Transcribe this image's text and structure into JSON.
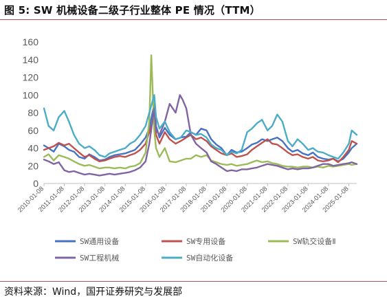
{
  "figure": {
    "title": "图 5:  SW 机械设备二级子行业整体 PE 情况（TTM）",
    "source": "资料来源：Wind，国开证券研究与发展部"
  },
  "colors": {
    "rule": "#c0504d",
    "axis_text": "#595959"
  },
  "chart_data": {
    "type": "line",
    "title": "",
    "xlabel": "",
    "ylabel": "",
    "ylim": [
      0,
      160
    ],
    "yticks": [
      0,
      20,
      40,
      60,
      80,
      100,
      120,
      140,
      160
    ],
    "xlim": [
      "2010-01-08",
      "2025-05-30"
    ],
    "xticks": [
      "2010-01-08",
      "2011-01-08",
      "2012-01-08",
      "2013-01-08",
      "2014-01-08",
      "2015-01-08",
      "2016-01-08",
      "2017-01-08",
      "2018-01-08",
      "2019-01-08",
      "2020-01-08",
      "2021-01-08",
      "2022-01-08",
      "2023-01-08",
      "2024-01-08",
      "2025-01-08"
    ],
    "grid": false,
    "legend_position": "bottom",
    "series": [
      {
        "name": "SW通用设备",
        "color": "#4472c4",
        "x": [
          "2010-01-08",
          "2010-04-01",
          "2010-07-01",
          "2010-10-01",
          "2011-01-08",
          "2011-04-01",
          "2011-07-01",
          "2011-10-01",
          "2012-01-08",
          "2012-04-01",
          "2012-07-01",
          "2012-10-01",
          "2013-01-08",
          "2013-04-01",
          "2013-07-01",
          "2013-10-01",
          "2014-01-08",
          "2014-04-01",
          "2014-07-01",
          "2014-10-01",
          "2015-01-08",
          "2015-03-15",
          "2015-06-12",
          "2015-07-15",
          "2015-09-15",
          "2015-12-20",
          "2016-03-15",
          "2016-07-01",
          "2016-10-01",
          "2017-01-08",
          "2017-04-01",
          "2017-07-01",
          "2017-10-01",
          "2018-01-08",
          "2018-04-01",
          "2018-07-01",
          "2018-10-01",
          "2019-01-08",
          "2019-04-01",
          "2019-07-01",
          "2019-10-01",
          "2020-01-08",
          "2020-04-01",
          "2020-07-01",
          "2020-10-01",
          "2021-01-08",
          "2021-04-01",
          "2021-07-01",
          "2021-10-01",
          "2022-01-08",
          "2022-04-01",
          "2022-07-01",
          "2022-10-01",
          "2023-01-08",
          "2023-04-01",
          "2023-07-01",
          "2023-10-01",
          "2024-01-08",
          "2024-04-01",
          "2024-07-01",
          "2024-10-01",
          "2025-01-08",
          "2025-03-01",
          "2025-05-30"
        ],
        "y": [
          43,
          40,
          36,
          45,
          42,
          38,
          36,
          30,
          28,
          33,
          30,
          26,
          27,
          30,
          32,
          33,
          34,
          36,
          38,
          44,
          52,
          62,
          90,
          65,
          52,
          63,
          55,
          50,
          52,
          53,
          58,
          55,
          62,
          60,
          50,
          44,
          40,
          32,
          38,
          35,
          36,
          40,
          44,
          46,
          50,
          48,
          50,
          52,
          48,
          40,
          36,
          38,
          34,
          32,
          35,
          30,
          28,
          27,
          28,
          25,
          28,
          35,
          40,
          45
        ]
      },
      {
        "name": "SW专用设备",
        "color": "#c0504d",
        "x": [
          "2010-01-08",
          "2010-04-01",
          "2010-07-01",
          "2010-10-01",
          "2011-01-08",
          "2011-04-01",
          "2011-07-01",
          "2011-10-01",
          "2012-01-08",
          "2012-04-01",
          "2012-07-01",
          "2012-10-01",
          "2013-01-08",
          "2013-04-01",
          "2013-07-01",
          "2013-10-01",
          "2014-01-08",
          "2014-04-01",
          "2014-07-01",
          "2014-10-01",
          "2015-01-08",
          "2015-03-15",
          "2015-06-12",
          "2015-07-15",
          "2015-09-15",
          "2015-12-20",
          "2016-03-15",
          "2016-07-01",
          "2016-10-01",
          "2017-01-08",
          "2017-04-01",
          "2017-07-01",
          "2017-10-01",
          "2018-01-08",
          "2018-04-01",
          "2018-07-01",
          "2018-10-01",
          "2019-01-08",
          "2019-04-01",
          "2019-07-01",
          "2019-10-01",
          "2020-01-08",
          "2020-04-01",
          "2020-07-01",
          "2020-10-01",
          "2021-01-08",
          "2021-04-01",
          "2021-07-01",
          "2021-10-01",
          "2022-01-08",
          "2022-04-01",
          "2022-07-01",
          "2022-10-01",
          "2023-01-08",
          "2023-04-01",
          "2023-07-01",
          "2023-10-01",
          "2024-01-08",
          "2024-04-01",
          "2024-07-01",
          "2024-10-01",
          "2025-01-08",
          "2025-03-01",
          "2025-05-30"
        ],
        "y": [
          38,
          40,
          42,
          46,
          43,
          45,
          40,
          35,
          30,
          32,
          28,
          25,
          26,
          28,
          30,
          31,
          30,
          32,
          34,
          38,
          45,
          58,
          75,
          55,
          45,
          58,
          50,
          45,
          48,
          52,
          55,
          50,
          52,
          48,
          42,
          38,
          34,
          32,
          34,
          30,
          31,
          33,
          38,
          42,
          46,
          50,
          45,
          44,
          40,
          35,
          32,
          33,
          30,
          28,
          30,
          26,
          25,
          26,
          28,
          24,
          30,
          38,
          48,
          45
        ]
      },
      {
        "name": "SW轨交设备Ⅱ",
        "color": "#9bbb59",
        "x": [
          "2010-01-08",
          "2010-04-01",
          "2010-07-01",
          "2010-10-01",
          "2011-01-08",
          "2011-04-01",
          "2011-07-01",
          "2011-10-01",
          "2012-01-08",
          "2012-04-01",
          "2012-07-01",
          "2012-10-01",
          "2013-01-08",
          "2013-04-01",
          "2013-07-01",
          "2013-10-01",
          "2014-01-08",
          "2014-04-01",
          "2014-07-01",
          "2014-10-01",
          "2015-01-08",
          "2015-03-15",
          "2015-04-20",
          "2015-06-12",
          "2015-07-15",
          "2015-09-15",
          "2015-12-20",
          "2016-03-15",
          "2016-07-01",
          "2016-10-01",
          "2017-01-08",
          "2017-04-01",
          "2017-07-01",
          "2017-10-01",
          "2018-01-08",
          "2018-04-01",
          "2018-07-01",
          "2018-10-01",
          "2019-01-08",
          "2019-04-01",
          "2019-07-01",
          "2019-10-01",
          "2020-01-08",
          "2020-04-01",
          "2020-07-01",
          "2020-10-01",
          "2021-01-08",
          "2021-04-01",
          "2021-07-01",
          "2021-10-01",
          "2022-01-08",
          "2022-04-01",
          "2022-07-01",
          "2022-10-01",
          "2023-01-08",
          "2023-04-01",
          "2023-07-01",
          "2023-10-01",
          "2024-01-08",
          "2024-04-01",
          "2024-07-01",
          "2024-10-01",
          "2025-01-08",
          "2025-03-01",
          "2025-05-30"
        ],
        "y": [
          30,
          33,
          26,
          32,
          30,
          28,
          25,
          22,
          20,
          21,
          19,
          17,
          18,
          18,
          17,
          18,
          17,
          19,
          20,
          23,
          35,
          70,
          145,
          60,
          40,
          30,
          40,
          25,
          24,
          26,
          28,
          28,
          32,
          30,
          32,
          26,
          24,
          22,
          21,
          22,
          20,
          21,
          22,
          24,
          26,
          24,
          25,
          23,
          22,
          20,
          19,
          19,
          18,
          19,
          19,
          18,
          19,
          18,
          20,
          19,
          20,
          21,
          22,
          21,
          22
        ]
      },
      {
        "name": "SW工程机械",
        "color": "#8064a2",
        "x": [
          "2010-01-08",
          "2010-04-01",
          "2010-07-01",
          "2010-10-01",
          "2011-01-08",
          "2011-04-01",
          "2011-07-01",
          "2011-10-01",
          "2012-01-08",
          "2012-04-01",
          "2012-07-01",
          "2012-10-01",
          "2013-01-08",
          "2013-04-01",
          "2013-07-01",
          "2013-10-01",
          "2014-01-08",
          "2014-04-01",
          "2014-07-01",
          "2014-10-01",
          "2015-01-08",
          "2015-03-15",
          "2015-06-12",
          "2015-07-15",
          "2015-09-15",
          "2015-12-20",
          "2016-03-15",
          "2016-07-01",
          "2016-09-15",
          "2016-11-01",
          "2017-01-08",
          "2017-04-01",
          "2017-07-01",
          "2017-10-01",
          "2018-01-08",
          "2018-04-01",
          "2018-07-01",
          "2018-10-01",
          "2019-01-08",
          "2019-04-01",
          "2019-07-01",
          "2019-10-01",
          "2020-01-08",
          "2020-04-01",
          "2020-07-01",
          "2020-10-01",
          "2021-01-08",
          "2021-04-01",
          "2021-07-01",
          "2021-10-01",
          "2022-01-08",
          "2022-04-01",
          "2022-07-01",
          "2022-10-01",
          "2023-01-08",
          "2023-04-01",
          "2023-07-01",
          "2023-10-01",
          "2024-01-08",
          "2024-04-01",
          "2024-07-01",
          "2024-10-01",
          "2025-01-08",
          "2025-03-01",
          "2025-05-30"
        ],
        "y": [
          27,
          25,
          22,
          24,
          15,
          13,
          14,
          12,
          10,
          11,
          10,
          9,
          10,
          11,
          10,
          11,
          12,
          13,
          15,
          18,
          25,
          45,
          85,
          60,
          55,
          70,
          90,
          80,
          100,
          95,
          85,
          55,
          45,
          40,
          35,
          25,
          22,
          18,
          14,
          15,
          14,
          16,
          16,
          17,
          18,
          20,
          22,
          21,
          20,
          18,
          16,
          17,
          16,
          17,
          17,
          18,
          20,
          22,
          22,
          20,
          21,
          22,
          23,
          24,
          22
        ]
      },
      {
        "name": "SW自动化设备",
        "color": "#4bacc6",
        "x": [
          "2010-01-08",
          "2010-04-01",
          "2010-07-01",
          "2010-10-01",
          "2011-01-08",
          "2011-04-01",
          "2011-07-01",
          "2011-10-01",
          "2012-01-08",
          "2012-04-01",
          "2012-07-01",
          "2012-10-01",
          "2013-01-08",
          "2013-04-01",
          "2013-07-01",
          "2013-10-01",
          "2014-01-08",
          "2014-04-01",
          "2014-07-01",
          "2014-10-01",
          "2015-01-08",
          "2015-03-15",
          "2015-06-12",
          "2015-07-15",
          "2015-09-15",
          "2015-12-20",
          "2016-03-15",
          "2016-07-01",
          "2016-10-01",
          "2017-01-08",
          "2017-04-01",
          "2017-07-01",
          "2017-10-01",
          "2018-01-08",
          "2018-04-01",
          "2018-07-01",
          "2018-10-01",
          "2019-01-08",
          "2019-04-01",
          "2019-07-01",
          "2019-10-01",
          "2020-01-08",
          "2020-04-01",
          "2020-07-01",
          "2020-10-01",
          "2021-01-08",
          "2021-04-01",
          "2021-07-01",
          "2021-10-01",
          "2022-01-08",
          "2022-04-01",
          "2022-07-01",
          "2022-10-01",
          "2023-01-08",
          "2023-04-01",
          "2023-07-01",
          "2023-10-01",
          "2024-01-08",
          "2024-04-01",
          "2024-07-01",
          "2024-10-01",
          "2025-01-08",
          "2025-03-01",
          "2025-05-30"
        ],
        "y": [
          85,
          65,
          60,
          75,
          82,
          70,
          55,
          45,
          40,
          42,
          38,
          32,
          30,
          34,
          36,
          38,
          40,
          45,
          48,
          55,
          65,
          80,
          100,
          75,
          62,
          70,
          58,
          50,
          52,
          60,
          58,
          55,
          56,
          52,
          44,
          40,
          38,
          32,
          36,
          34,
          38,
          58,
          62,
          68,
          72,
          60,
          65,
          78,
          70,
          48,
          42,
          50,
          45,
          38,
          40,
          36,
          35,
          32,
          30,
          28,
          35,
          45,
          60,
          55
        ]
      }
    ]
  }
}
